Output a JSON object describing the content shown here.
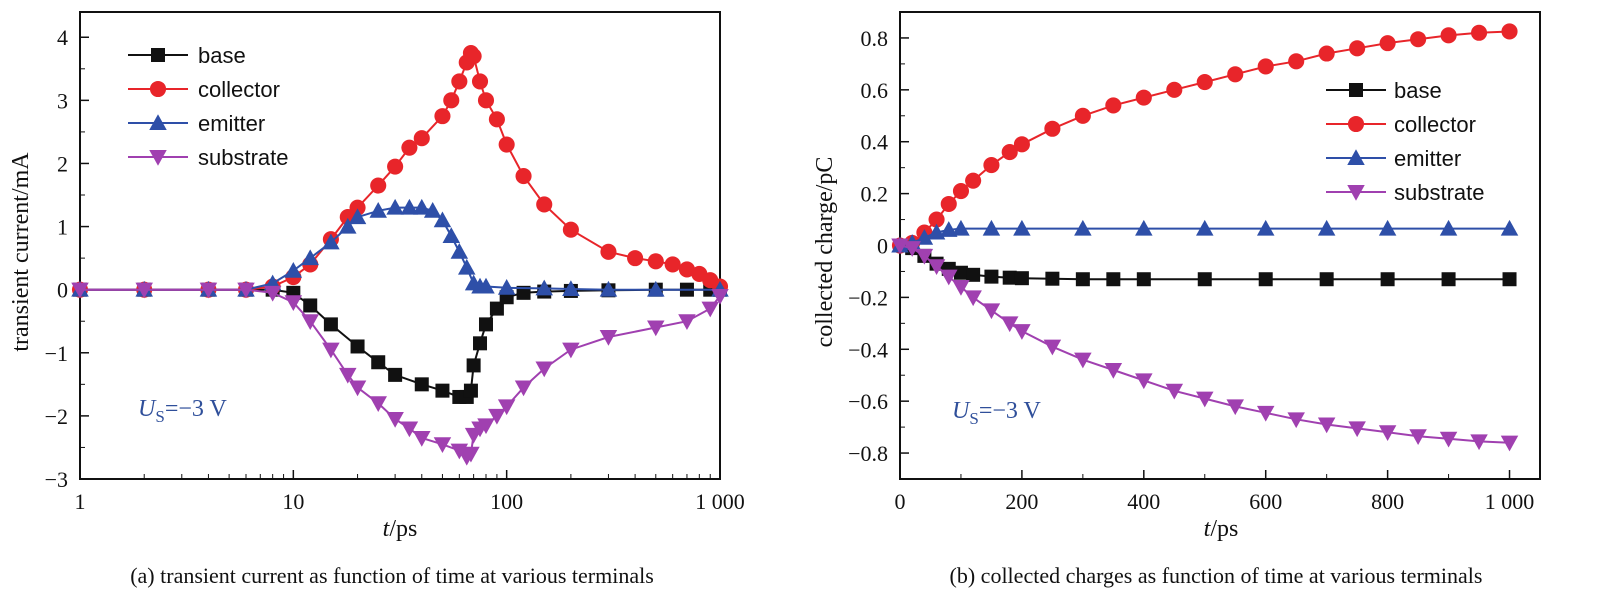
{
  "chart_data": [
    {
      "id": "a",
      "type": "line",
      "xscale": "log",
      "xlim": [
        1,
        1000
      ],
      "ylim": [
        -3,
        4.4
      ],
      "xticks": [
        1,
        10,
        100,
        1000
      ],
      "xtick_labels": [
        "1",
        "10",
        "100",
        "1 000"
      ],
      "yticks": [
        -3,
        -2,
        -1,
        0,
        1,
        2,
        3,
        4
      ],
      "ytick_labels": [
        "−3",
        "−2",
        "−1",
        "0",
        "1",
        "2",
        "3",
        "4"
      ],
      "xlabel_italic": "t",
      "xlabel_rest": "/ps",
      "ylabel": "transient current/mA",
      "annotation": {
        "italic": "U",
        "sub": "S",
        "rest": "=−3 V"
      },
      "caption": "(a) transient current as function of time at various terminals",
      "legend_position": "top-left",
      "series": [
        {
          "name": "base",
          "color": "#111111",
          "marker": "square",
          "x": [
            1,
            2,
            4,
            6,
            8,
            10,
            12,
            15,
            20,
            25,
            30,
            40,
            50,
            60,
            65,
            68,
            70,
            75,
            80,
            90,
            100,
            120,
            150,
            200,
            300,
            500,
            700,
            900,
            1000
          ],
          "y": [
            0,
            0,
            0,
            0,
            0,
            -0.05,
            -0.25,
            -0.55,
            -0.9,
            -1.15,
            -1.35,
            -1.5,
            -1.6,
            -1.7,
            -1.7,
            -1.6,
            -1.2,
            -0.85,
            -0.55,
            -0.3,
            -0.12,
            -0.05,
            -0.03,
            -0.02,
            -0.01,
            0,
            0,
            0,
            0
          ]
        },
        {
          "name": "collector",
          "color": "#e8252a",
          "marker": "circle",
          "x": [
            1,
            2,
            4,
            6,
            8,
            10,
            12,
            15,
            18,
            20,
            25,
            30,
            35,
            40,
            50,
            55,
            60,
            65,
            68,
            70,
            75,
            80,
            90,
            100,
            120,
            150,
            200,
            300,
            400,
            500,
            600,
            700,
            800,
            900,
            1000
          ],
          "y": [
            0,
            0,
            0,
            0,
            0.05,
            0.2,
            0.4,
            0.8,
            1.15,
            1.3,
            1.65,
            1.95,
            2.25,
            2.4,
            2.75,
            3.0,
            3.3,
            3.6,
            3.75,
            3.7,
            3.3,
            3.0,
            2.7,
            2.3,
            1.8,
            1.35,
            0.95,
            0.6,
            0.5,
            0.45,
            0.4,
            0.32,
            0.25,
            0.15,
            0.05
          ]
        },
        {
          "name": "emitter",
          "color": "#2e4fa8",
          "marker": "triangle-up",
          "x": [
            1,
            2,
            4,
            6,
            8,
            10,
            12,
            15,
            18,
            20,
            25,
            30,
            35,
            40,
            45,
            50,
            55,
            60,
            65,
            70,
            75,
            80,
            100,
            150,
            200,
            300,
            500,
            1000
          ],
          "y": [
            0,
            0,
            0,
            0,
            0.1,
            0.3,
            0.5,
            0.75,
            1.0,
            1.15,
            1.25,
            1.3,
            1.3,
            1.3,
            1.25,
            1.1,
            0.85,
            0.6,
            0.35,
            0.1,
            0.05,
            0.05,
            0.03,
            0.02,
            0.01,
            0,
            0,
            0
          ]
        },
        {
          "name": "substrate",
          "color": "#a040b0",
          "marker": "triangle-down",
          "x": [
            1,
            2,
            4,
            6,
            8,
            10,
            12,
            15,
            18,
            20,
            25,
            30,
            35,
            40,
            50,
            60,
            65,
            68,
            70,
            75,
            80,
            90,
            100,
            120,
            150,
            200,
            300,
            500,
            700,
            900,
            1000
          ],
          "y": [
            0,
            0,
            0,
            0,
            -0.05,
            -0.2,
            -0.5,
            -0.95,
            -1.35,
            -1.55,
            -1.8,
            -2.05,
            -2.2,
            -2.35,
            -2.45,
            -2.55,
            -2.65,
            -2.6,
            -2.3,
            -2.2,
            -2.15,
            -2.0,
            -1.85,
            -1.55,
            -1.25,
            -0.95,
            -0.75,
            -0.6,
            -0.5,
            -0.3,
            -0.1
          ]
        }
      ]
    },
    {
      "id": "b",
      "type": "line",
      "xlim": [
        0,
        1050
      ],
      "ylim": [
        -0.9,
        0.9
      ],
      "xticks": [
        0,
        200,
        400,
        600,
        800,
        1000
      ],
      "xtick_labels": [
        "0",
        "200",
        "400",
        "600",
        "800",
        "1 000"
      ],
      "yticks": [
        -0.8,
        -0.6,
        -0.4,
        -0.2,
        0,
        0.2,
        0.4,
        0.6,
        0.8
      ],
      "ytick_labels": [
        "−0.8",
        "−0.6",
        "−0.4",
        "−0.2",
        "0",
        "0.2",
        "0.4",
        "0.6",
        "0.8"
      ],
      "xlabel_italic": "t",
      "xlabel_rest": "/ps",
      "ylabel": "collected charge/pC",
      "annotation": {
        "italic": "U",
        "sub": "S",
        "rest": "=−3 V"
      },
      "caption": "(b) collected charges as function of time at various terminals",
      "legend_position": "center-right",
      "series": [
        {
          "name": "base",
          "color": "#111111",
          "marker": "square",
          "x": [
            0,
            20,
            40,
            60,
            80,
            100,
            120,
            150,
            180,
            200,
            250,
            300,
            350,
            400,
            500,
            600,
            700,
            800,
            900,
            1000
          ],
          "y": [
            0,
            -0.01,
            -0.04,
            -0.07,
            -0.09,
            -0.105,
            -0.113,
            -0.12,
            -0.124,
            -0.126,
            -0.128,
            -0.13,
            -0.13,
            -0.13,
            -0.13,
            -0.13,
            -0.13,
            -0.13,
            -0.13,
            -0.13
          ]
        },
        {
          "name": "collector",
          "color": "#e8252a",
          "marker": "circle",
          "x": [
            0,
            20,
            40,
            60,
            80,
            100,
            120,
            150,
            180,
            200,
            250,
            300,
            350,
            400,
            450,
            500,
            550,
            600,
            650,
            700,
            750,
            800,
            850,
            900,
            950,
            1000
          ],
          "y": [
            0,
            0.01,
            0.05,
            0.1,
            0.16,
            0.21,
            0.25,
            0.31,
            0.36,
            0.39,
            0.45,
            0.5,
            0.54,
            0.57,
            0.6,
            0.63,
            0.66,
            0.69,
            0.71,
            0.74,
            0.76,
            0.78,
            0.795,
            0.81,
            0.82,
            0.825
          ]
        },
        {
          "name": "emitter",
          "color": "#2e4fa8",
          "marker": "triangle-up",
          "x": [
            0,
            20,
            40,
            60,
            80,
            100,
            150,
            200,
            300,
            400,
            500,
            600,
            700,
            800,
            900,
            1000
          ],
          "y": [
            0,
            0.01,
            0.03,
            0.05,
            0.06,
            0.065,
            0.065,
            0.065,
            0.065,
            0.065,
            0.065,
            0.065,
            0.065,
            0.065,
            0.065,
            0.065
          ]
        },
        {
          "name": "substrate",
          "color": "#a040b0",
          "marker": "triangle-down",
          "x": [
            0,
            20,
            40,
            60,
            80,
            100,
            120,
            150,
            180,
            200,
            250,
            300,
            350,
            400,
            450,
            500,
            550,
            600,
            650,
            700,
            750,
            800,
            850,
            900,
            950,
            1000
          ],
          "y": [
            0,
            -0.01,
            -0.04,
            -0.08,
            -0.12,
            -0.16,
            -0.2,
            -0.25,
            -0.3,
            -0.33,
            -0.39,
            -0.44,
            -0.48,
            -0.52,
            -0.56,
            -0.59,
            -0.62,
            -0.645,
            -0.67,
            -0.69,
            -0.705,
            -0.72,
            -0.735,
            -0.745,
            -0.755,
            -0.76
          ]
        }
      ]
    }
  ]
}
